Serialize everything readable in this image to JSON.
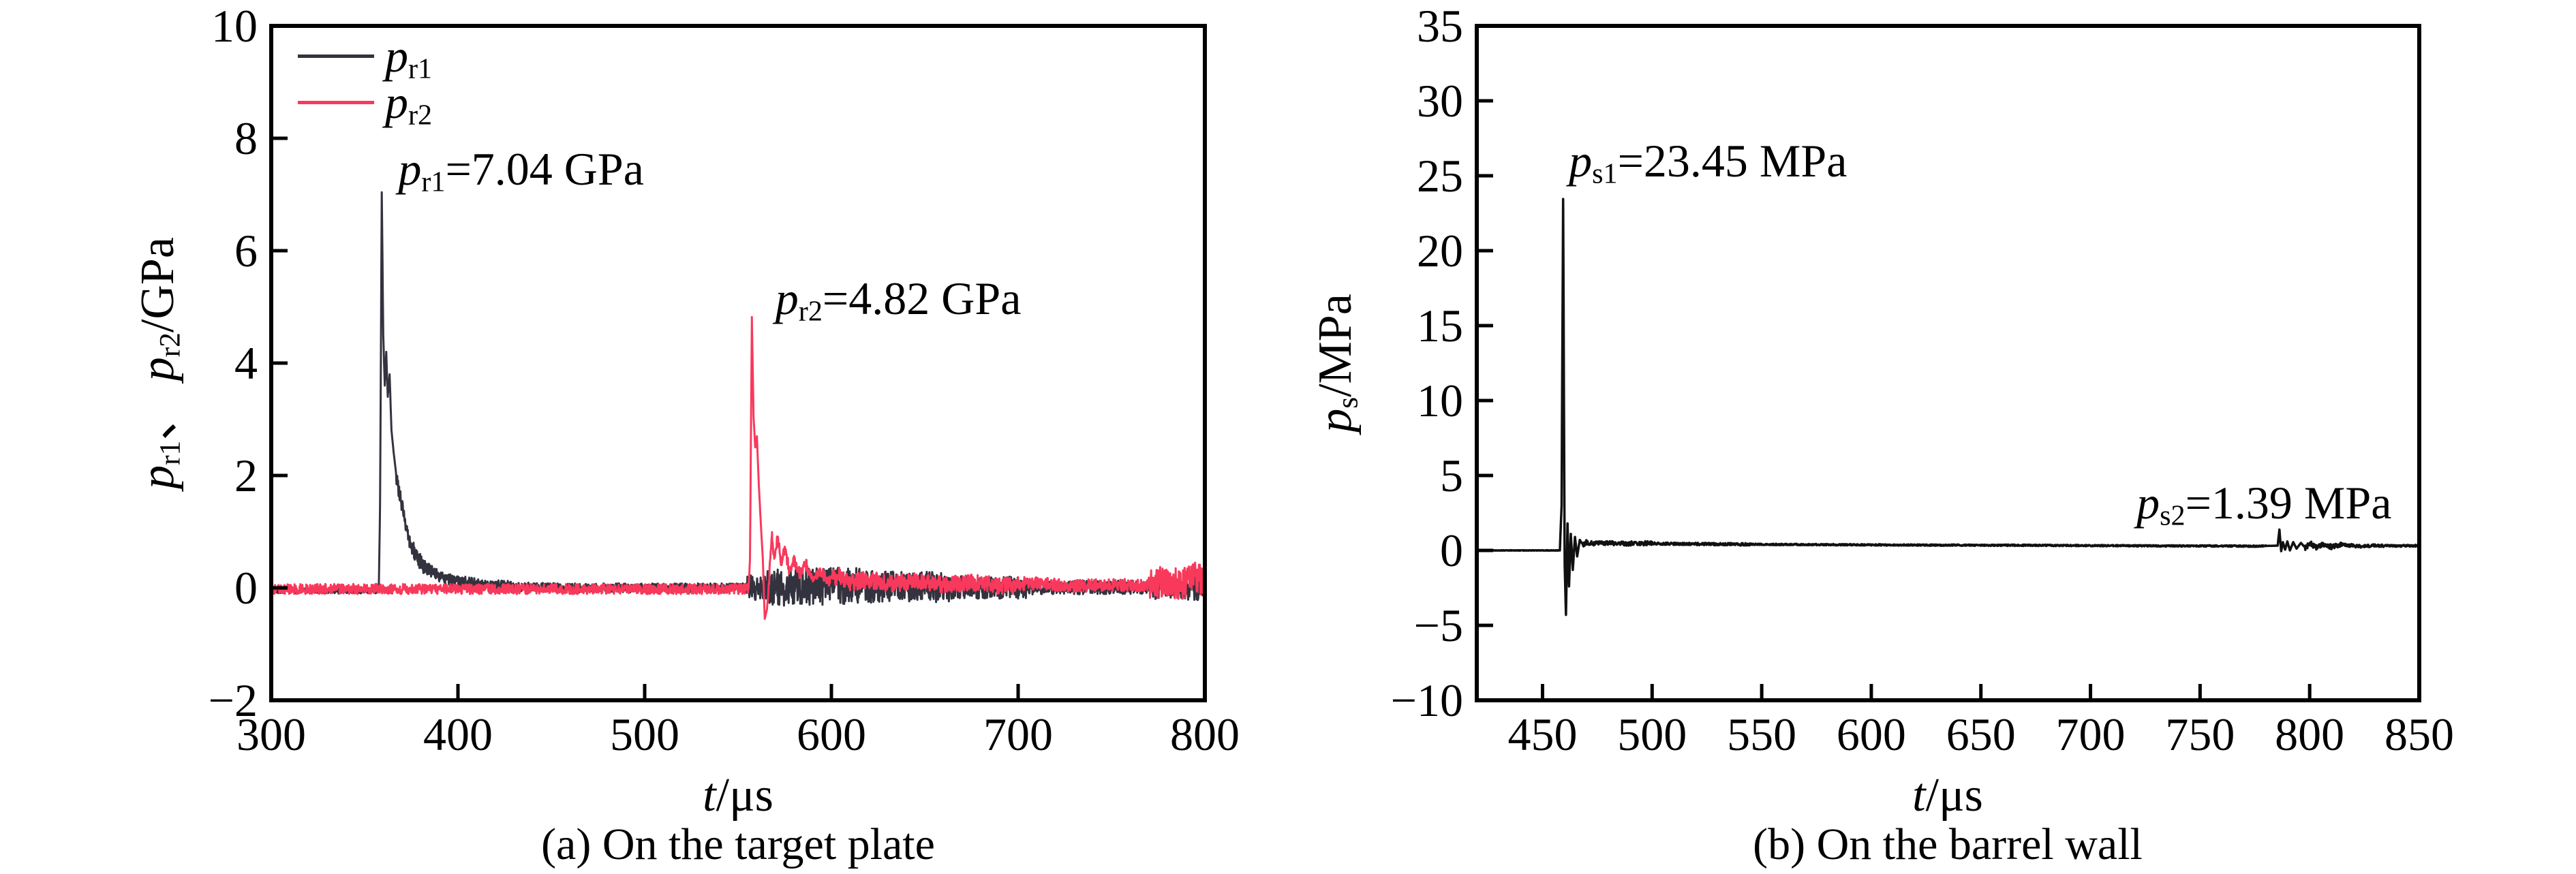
{
  "chart_data": [
    {
      "id": "a",
      "type": "line",
      "caption": "(a) On the target plate",
      "xlabel": {
        "var": "t",
        "unit": "/μs"
      },
      "ylabel": {
        "var1": "p",
        "sub1": "r1",
        "sep": "、 ",
        "var2": "p",
        "sub2": "r2",
        "unit": "/GPa"
      },
      "xlim": [
        300,
        800
      ],
      "ylim": [
        -2,
        10
      ],
      "x_ticks": [
        300,
        400,
        500,
        600,
        700,
        800
      ],
      "y_ticks": [
        -2,
        0,
        2,
        4,
        6,
        8,
        10
      ],
      "grid": false,
      "legend_position": "top-left",
      "series": [
        {
          "name": "pr1",
          "label": {
            "var": "p",
            "sub": "r1"
          },
          "color": "#33333f",
          "width": 3,
          "peak": {
            "t": 360,
            "value": 7.04,
            "unit": "GPa"
          },
          "keypoints": [
            [
              300,
              -0.05
            ],
            [
              357.6,
              -0.05
            ],
            [
              358.3,
              1.5
            ],
            [
              359.2,
              7.04
            ],
            [
              360,
              4.5
            ],
            [
              360.8,
              3.6
            ],
            [
              361.6,
              4.2
            ],
            [
              362.4,
              3.4
            ],
            [
              363.4,
              3.8
            ],
            [
              364.4,
              2.8
            ],
            [
              365.6,
              2.4
            ],
            [
              367,
              2.0
            ],
            [
              368.5,
              1.7
            ],
            [
              370,
              1.45
            ],
            [
              372,
              1.1
            ],
            [
              374,
              0.85
            ],
            [
              376.5,
              0.65
            ],
            [
              379,
              0.5
            ],
            [
              382,
              0.38
            ],
            [
              386,
              0.3
            ],
            [
              390,
              0.22
            ],
            [
              395,
              0.15
            ],
            [
              402,
              0.1
            ],
            [
              412,
              0.05
            ],
            [
              430,
              0.02
            ],
            [
              460,
              0
            ],
            [
              550,
              0
            ],
            [
              600,
              0.03
            ],
            [
              700,
              0
            ],
            [
              800,
              0.02
            ]
          ],
          "noise": [
            [
              300,
              357.3,
              0.05
            ],
            [
              367,
              382,
              0.14
            ],
            [
              382,
              430,
              0.11
            ],
            [
              430,
              554,
              0.08
            ],
            [
              554,
              565,
              0.22
            ],
            [
              565,
              622,
              0.33
            ],
            [
              622,
              665,
              0.27
            ],
            [
              665,
              705,
              0.2
            ],
            [
              705,
              772,
              0.12
            ],
            [
              772,
              800,
              0.24
            ]
          ]
        },
        {
          "name": "pr2",
          "label": {
            "var": "p",
            "sub": "r2"
          },
          "color": "#f8395c",
          "width": 3,
          "peak": {
            "t": 558,
            "value": 4.82,
            "unit": "GPa"
          },
          "keypoints": [
            [
              300,
              -0.02
            ],
            [
              555.6,
              -0.02
            ],
            [
              556.4,
              0.5
            ],
            [
              557.4,
              4.82
            ],
            [
              558.3,
              3.05
            ],
            [
              559.2,
              2.5
            ],
            [
              560.1,
              2.7
            ],
            [
              561.1,
              1.85
            ],
            [
              562.2,
              1.15
            ],
            [
              563.3,
              0.5
            ],
            [
              564.3,
              -0.55
            ],
            [
              565.5,
              -0.38
            ],
            [
              566.8,
              0.25
            ],
            [
              568.2,
              0.92
            ],
            [
              569.6,
              0.5
            ],
            [
              571.2,
              0.95
            ],
            [
              573,
              0.45
            ],
            [
              575,
              0.72
            ],
            [
              577.5,
              0.3
            ],
            [
              580,
              0.5
            ],
            [
              583,
              0.25
            ],
            [
              586.5,
              0.42
            ],
            [
              590,
              0.15
            ],
            [
              594,
              0.3
            ],
            [
              598,
              0.12
            ],
            [
              604,
              0.22
            ],
            [
              610,
              0.1
            ],
            [
              620,
              0.15
            ],
            [
              632,
              0.07
            ],
            [
              645,
              0.12
            ],
            [
              660,
              0.05
            ],
            [
              675,
              0.1
            ],
            [
              690,
              0.04
            ],
            [
              710,
              0.08
            ],
            [
              730,
              0.03
            ],
            [
              750,
              0.06
            ],
            [
              768,
              0.03
            ],
            [
              778,
              0.12
            ],
            [
              788,
              0.06
            ],
            [
              794,
              0.2
            ],
            [
              800,
              0.12
            ]
          ],
          "noise": [
            [
              300,
              555.3,
              0.09
            ],
            [
              566,
              600,
              0.1
            ],
            [
              600,
              705,
              0.15
            ],
            [
              705,
              770,
              0.11
            ],
            [
              770,
              800,
              0.27
            ]
          ]
        }
      ],
      "annotations": [
        {
          "var": "p",
          "sub": "r1",
          "rest": "=7.04 GPa",
          "anchor_t": 368,
          "anchor_v": 7.45
        },
        {
          "var": "p",
          "sub": "r2",
          "rest": "=4.82 GPa",
          "anchor_t": 570,
          "anchor_v": 5.15
        }
      ]
    },
    {
      "id": "b",
      "type": "line",
      "caption": "(b) On the barrel wall",
      "xlabel": {
        "var": "t",
        "unit": "/μs"
      },
      "ylabel": {
        "var1": "p",
        "sub1": "s",
        "unit": "/MPa"
      },
      "xlim": [
        420,
        850
      ],
      "ylim": [
        -10,
        35
      ],
      "x_ticks": [
        450,
        500,
        550,
        600,
        650,
        700,
        750,
        800,
        850
      ],
      "y_ticks": [
        -10,
        -5,
        0,
        5,
        10,
        15,
        20,
        25,
        30,
        35
      ],
      "grid": false,
      "legend_position": "none",
      "series": [
        {
          "name": "ps",
          "label": {
            "var": "p",
            "sub": "s"
          },
          "color": "#111111",
          "width": 3.5,
          "peak": {
            "t": 459.4,
            "value": 23.45,
            "unit": "MPa"
          },
          "keypoints": [
            [
              420,
              0
            ],
            [
              457.9,
              0
            ],
            [
              458.7,
              3
            ],
            [
              459.4,
              23.45
            ],
            [
              460.1,
              -1
            ],
            [
              460.7,
              -4.3
            ],
            [
              461.4,
              1.8
            ],
            [
              462.1,
              -2.4
            ],
            [
              462.9,
              1.1
            ],
            [
              463.8,
              -1.3
            ],
            [
              464.8,
              0.9
            ],
            [
              465.8,
              -0.4
            ],
            [
              467,
              0.7
            ],
            [
              468.5,
              0.35
            ],
            [
              470,
              0.55
            ],
            [
              473,
              0.45
            ],
            [
              478,
              0.5
            ],
            [
              485,
              0.45
            ],
            [
              495,
              0.48
            ],
            [
              510,
              0.44
            ],
            [
              530,
              0.42
            ],
            [
              555,
              0.4
            ],
            [
              585,
              0.38
            ],
            [
              615,
              0.36
            ],
            [
              645,
              0.35
            ],
            [
              675,
              0.34
            ],
            [
              705,
              0.32
            ],
            [
              735,
              0.3
            ],
            [
              760,
              0.3
            ],
            [
              775,
              0.28
            ],
            [
              785.4,
              0.32
            ],
            [
              786.2,
              1.39
            ],
            [
              787,
              -0.05
            ],
            [
              787.8,
              0.55
            ],
            [
              788.8,
              0.05
            ],
            [
              789.8,
              0.6
            ],
            [
              791,
              0
            ],
            [
              792.5,
              0.55
            ],
            [
              794,
              0.12
            ],
            [
              796,
              0.5
            ],
            [
              798,
              0.18
            ],
            [
              800.5,
              0.45
            ],
            [
              803,
              0.2
            ],
            [
              806,
              0.42
            ],
            [
              810,
              0.24
            ],
            [
              815,
              0.38
            ],
            [
              822,
              0.28
            ],
            [
              830,
              0.34
            ],
            [
              840,
              0.3
            ],
            [
              850,
              0.32
            ]
          ],
          "noise": [
            [
              420,
              457.6,
              0.015
            ],
            [
              468,
              500,
              0.14
            ],
            [
              500,
              545,
              0.08
            ],
            [
              545,
              780,
              0.045
            ],
            [
              798,
              815,
              0.16
            ],
            [
              815,
              835,
              0.1
            ],
            [
              835,
              850,
              0.06
            ]
          ]
        }
      ],
      "annotations": [
        {
          "var": "p",
          "sub": "s1",
          "rest": "=23.45 MPa",
          "anchor_t": 462,
          "anchor_v": 26
        },
        {
          "var": "p",
          "sub": "s2",
          "rest": "=1.39 MPa",
          "anchor_t": 721,
          "anchor_v": 3.2
        }
      ]
    }
  ]
}
